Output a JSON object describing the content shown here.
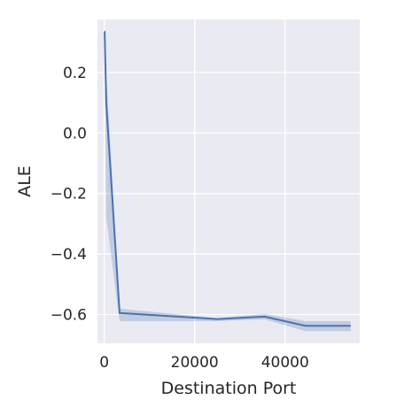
{
  "chart_data": {
    "type": "line",
    "title": "",
    "xlabel": "Destination Port",
    "ylabel": "ALE",
    "xlim": [
      -1500,
      56500
    ],
    "ylim": [
      -0.695,
      0.375
    ],
    "x_ticks": [
      0,
      20000,
      40000
    ],
    "x_tick_labels": [
      "0",
      "20000",
      "40000"
    ],
    "y_ticks": [
      0.2,
      0.0,
      -0.2,
      -0.4,
      -0.6
    ],
    "y_tick_labels": [
      "0.2",
      "0.0",
      "−0.2",
      "−0.4",
      "−0.6"
    ],
    "grid": true,
    "series": [
      {
        "x": [
          53,
          80,
          443,
          3400,
          25000,
          35500,
          44500,
          54500
        ],
        "y": [
          0.335,
          0.335,
          0.1,
          -0.595,
          -0.615,
          -0.607,
          -0.637,
          -0.637
        ],
        "ci_lower": [
          0.335,
          0.335,
          -0.28,
          -0.622,
          -0.622,
          -0.616,
          -0.655,
          -0.655
        ],
        "ci_upper": [
          0.335,
          0.335,
          0.2,
          -0.58,
          -0.612,
          -0.598,
          -0.622,
          -0.622
        ]
      }
    ],
    "colors": {
      "line": "#4c72b0",
      "band": "#4c72b0",
      "plot_background": "#eaeaf2",
      "grid": "#ffffff"
    }
  }
}
